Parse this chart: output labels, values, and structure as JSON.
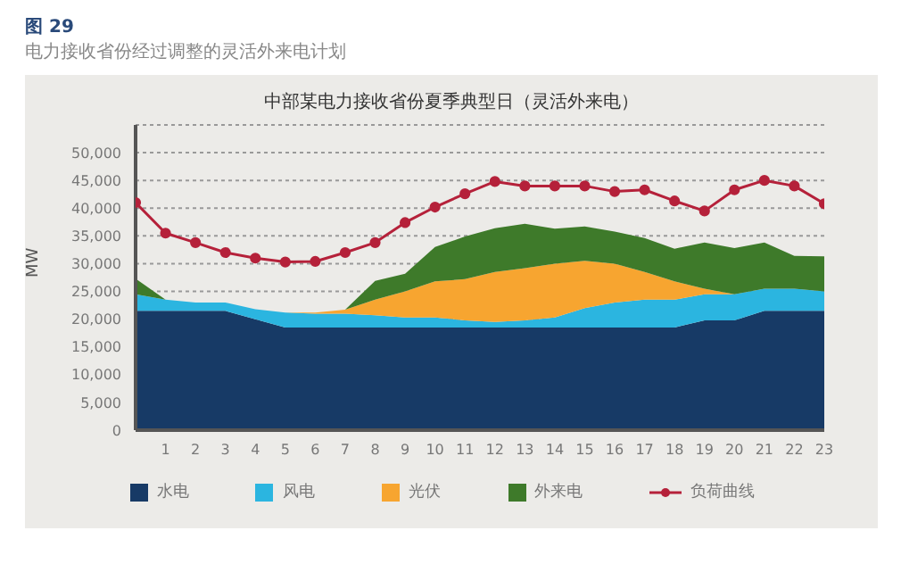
{
  "chart_data": {
    "type": "area",
    "stacked": true,
    "title": "中部某电力接收省份夏季典型日（灵活外来电）",
    "subtitle": "电力接收省份经过调整的灵活外来电计划",
    "annotations": [
      "图 29"
    ],
    "ylabel": "MW",
    "x": [
      0,
      1,
      2,
      3,
      4,
      5,
      6,
      7,
      8,
      9,
      10,
      11,
      12,
      13,
      14,
      15,
      16,
      17,
      18,
      19,
      20,
      21,
      22,
      23
    ],
    "xlim": [
      0,
      23
    ],
    "xticks": [
      1,
      2,
      3,
      4,
      5,
      6,
      7,
      8,
      9,
      10,
      11,
      12,
      13,
      14,
      15,
      16,
      17,
      18,
      19,
      20,
      21,
      22,
      23
    ],
    "ylim": [
      0,
      55000
    ],
    "yticks": [
      {
        "value": 0,
        "label": "0"
      },
      {
        "value": 5000,
        "label": "5,000"
      },
      {
        "value": 10000,
        "label": "10,000"
      },
      {
        "value": 15000,
        "label": "15,000"
      },
      {
        "value": 20000,
        "label": "20,000"
      },
      {
        "value": 25000,
        "label": "25,000"
      },
      {
        "value": 30000,
        "label": "30,000"
      },
      {
        "value": 35000,
        "label": "35,000"
      },
      {
        "value": 40000,
        "label": "40,000"
      },
      {
        "value": 45000,
        "label": "45,000"
      },
      {
        "value": 50000,
        "label": "50,000"
      }
    ],
    "grid": "y",
    "legend": "bottom",
    "series": [
      {
        "name": "水电",
        "color": "#173a66",
        "values": [
          21500,
          21500,
          21500,
          21500,
          20000,
          18500,
          18500,
          18500,
          18500,
          18500,
          18500,
          18500,
          18500,
          18500,
          18500,
          18500,
          18500,
          18500,
          18500,
          19800,
          19800,
          21500,
          21500,
          21500
        ]
      },
      {
        "name": "风电",
        "color": "#2bb5e0",
        "values": [
          3000,
          2000,
          1500,
          1500,
          1800,
          2700,
          2500,
          2500,
          2200,
          1800,
          1800,
          1300,
          1000,
          1300,
          1800,
          3500,
          4500,
          5000,
          5000,
          4700,
          4700,
          4000,
          4000,
          3500
        ]
      },
      {
        "name": "光伏",
        "color": "#f7a530",
        "values": [
          0,
          0,
          0,
          0,
          0,
          0,
          200,
          700,
          2800,
          4700,
          6500,
          7400,
          9000,
          9400,
          9700,
          8500,
          7000,
          5000,
          3300,
          1000,
          0,
          0,
          0,
          0
        ]
      },
      {
        "name": "外来电",
        "color": "#3e7a2a",
        "values": [
          2800,
          0,
          0,
          0,
          0,
          0,
          0,
          0,
          3400,
          3200,
          6200,
          7700,
          7900,
          8000,
          6300,
          6200,
          5800,
          6100,
          5900,
          8300,
          8300,
          8300,
          5900,
          6300
        ]
      },
      {
        "name": "负荷曲线",
        "type": "line",
        "color": "#b5213a",
        "marker": "circle",
        "values": [
          41000,
          35500,
          33800,
          32000,
          31000,
          30300,
          30400,
          32000,
          33800,
          37400,
          40200,
          42600,
          44800,
          44000,
          44000,
          44000,
          43000,
          43300,
          41300,
          39500,
          43300,
          45000,
          44000,
          40800
        ]
      }
    ]
  }
}
